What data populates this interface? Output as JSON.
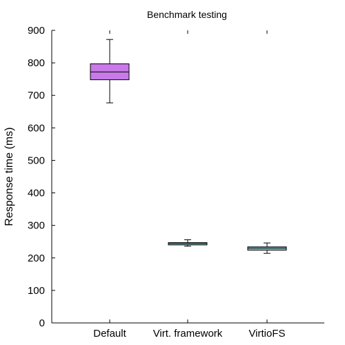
{
  "chart_data": {
    "type": "box",
    "title": "Benchmark testing",
    "xlabel": "",
    "ylabel": "Response time (ms)",
    "ylim": [
      0,
      900
    ],
    "yticks": [
      0,
      100,
      200,
      300,
      400,
      500,
      600,
      700,
      800,
      900
    ],
    "categories": [
      "Default",
      "Virt. framework",
      "VirtioFS"
    ],
    "boxes": [
      {
        "category": "Default",
        "whisker_low": 677,
        "q1": 748,
        "median": 772,
        "q3": 797,
        "whisker_high": 872,
        "color": "#c77ae8"
      },
      {
        "category": "Virt. framework",
        "whisker_low": 236,
        "q1": 240,
        "median": 244,
        "q3": 247,
        "whisker_high": 256,
        "color": "#8fd1cf"
      },
      {
        "category": "VirtioFS",
        "whisker_low": 214,
        "q1": 224,
        "median": 230,
        "q3": 234,
        "whisker_high": 246,
        "color": "#7ec9d4"
      }
    ],
    "grid": false,
    "legend": "none"
  }
}
